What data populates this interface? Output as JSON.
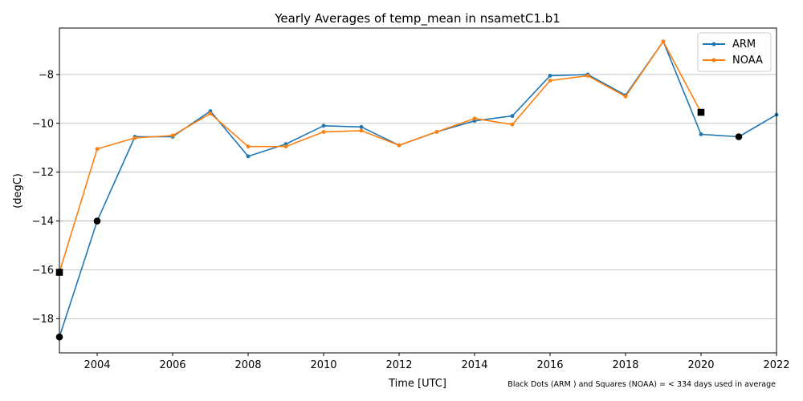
{
  "chart_data": {
    "type": "line",
    "title": "Yearly Averages of temp_mean in nsametC1.b1",
    "xlabel": "Time [UTC]",
    "ylabel": "(degC)",
    "xlim": [
      2003,
      2022
    ],
    "ylim": [
      -19.4,
      -6.1
    ],
    "x_ticks": [
      2004,
      2006,
      2008,
      2010,
      2012,
      2014,
      2016,
      2018,
      2020,
      2022
    ],
    "y_ticks": [
      -18,
      -16,
      -14,
      -12,
      -10,
      -8
    ],
    "grid": "horizontal",
    "legend_position": "top-right",
    "footnote": "Black Dots (ARM ) and Squares (NOAA) = < 334 days used in average",
    "series": [
      {
        "name": "ARM",
        "color": "#1f77b4",
        "x": [
          2003,
          2004,
          2005,
          2006,
          2007,
          2008,
          2009,
          2010,
          2011,
          2012,
          2013,
          2014,
          2015,
          2016,
          2017,
          2018,
          2019,
          2020,
          2021,
          2022
        ],
        "values": [
          -18.75,
          -14.0,
          -10.55,
          -10.55,
          -9.5,
          -11.35,
          -10.85,
          -10.1,
          -10.15,
          -10.9,
          -10.35,
          -9.9,
          -9.7,
          -8.05,
          -8.0,
          -8.85,
          -6.65,
          -10.45,
          -10.55,
          -9.65
        ],
        "low_coverage_x": [
          2003,
          2004,
          2021
        ]
      },
      {
        "name": "NOAA",
        "color": "#ff7f0e",
        "x": [
          2003,
          2004,
          2005,
          2006,
          2007,
          2008,
          2009,
          2010,
          2011,
          2012,
          2013,
          2014,
          2015,
          2016,
          2017,
          2018,
          2019,
          2020
        ],
        "values": [
          -16.1,
          -11.05,
          -10.6,
          -10.5,
          -9.6,
          -10.95,
          -10.95,
          -10.35,
          -10.3,
          -10.9,
          -10.35,
          -9.8,
          -10.05,
          -8.25,
          -8.05,
          -8.9,
          -6.65,
          -9.55
        ],
        "low_coverage_x": [
          2003,
          2020
        ]
      }
    ]
  }
}
